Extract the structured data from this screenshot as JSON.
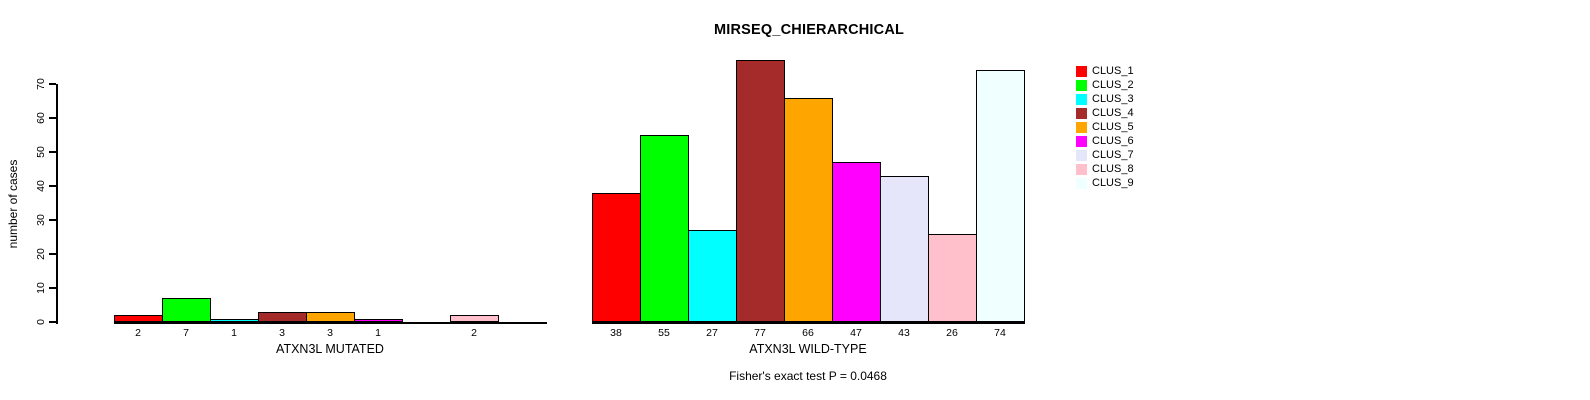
{
  "title": "MIRSEQ_CHIERARCHICAL",
  "footnote": "Fisher's exact test P = 0.0468",
  "y_axis": {
    "label": "number of cases",
    "tick_labels": [
      "0",
      "10",
      "20",
      "30",
      "40",
      "50",
      "60",
      "70"
    ]
  },
  "chart_data": {
    "type": "bar",
    "title": "MIRSEQ_CHIERARCHICAL",
    "ylabel": "number of cases",
    "ylim": [
      0,
      70
    ],
    "yticks": [
      0,
      10,
      20,
      30,
      40,
      50,
      60,
      70
    ],
    "grid": false,
    "legend_position": "right",
    "annotation": "Fisher's exact test P = 0.0468",
    "clusters": [
      {
        "label": "CLUS_1",
        "color": "#FF0000"
      },
      {
        "label": "CLUS_2",
        "color": "#00FF00"
      },
      {
        "label": "CLUS_3",
        "color": "#00FFFF"
      },
      {
        "label": "CLUS_4",
        "color": "#A52A2A"
      },
      {
        "label": "CLUS_5",
        "color": "#FFA500"
      },
      {
        "label": "CLUS_6",
        "color": "#FF00FF"
      },
      {
        "label": "CLUS_7",
        "color": "#E6E6FA"
      },
      {
        "label": "CLUS_8",
        "color": "#FFC0CB"
      },
      {
        "label": "CLUS_9",
        "color": "#F0FFFF"
      }
    ],
    "panels": [
      {
        "xlabel": "ATXN3L MUTATED",
        "categories": [
          "CLUS_1",
          "CLUS_2",
          "CLUS_3",
          "CLUS_4",
          "CLUS_5",
          "CLUS_6",
          "CLUS_7",
          "CLUS_8",
          "CLUS_9"
        ],
        "values": [
          2,
          7,
          1,
          3,
          3,
          1,
          0,
          2,
          0
        ],
        "bar_labels": [
          "2",
          "7",
          "1",
          "3",
          "3",
          "1",
          "",
          "2",
          ""
        ]
      },
      {
        "xlabel": "ATXN3L WILD-TYPE",
        "categories": [
          "CLUS_1",
          "CLUS_2",
          "CLUS_3",
          "CLUS_4",
          "CLUS_5",
          "CLUS_6",
          "CLUS_7",
          "CLUS_8",
          "CLUS_9"
        ],
        "values": [
          38,
          55,
          27,
          77,
          66,
          47,
          43,
          26,
          74
        ],
        "bar_labels": [
          "38",
          "55",
          "27",
          "77",
          "66",
          "47",
          "43",
          "26",
          "74"
        ]
      }
    ]
  }
}
